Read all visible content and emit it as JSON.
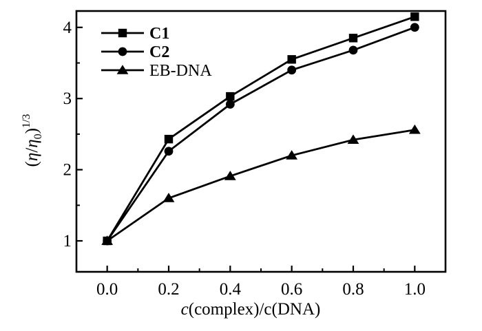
{
  "figure": {
    "background_color": "#ffffff",
    "ink_color": "#000000"
  },
  "chart_data": {
    "type": "line",
    "title": "",
    "x": [
      0.0,
      0.2,
      0.4,
      0.6,
      0.8,
      1.0
    ],
    "series": [
      {
        "name": "C1",
        "marker": "square",
        "label_bold": true,
        "values": [
          1.0,
          2.43,
          3.03,
          3.55,
          3.85,
          4.15
        ]
      },
      {
        "name": "C2",
        "marker": "circle",
        "label_bold": true,
        "values": [
          1.0,
          2.26,
          2.92,
          3.4,
          3.68,
          4.0
        ]
      },
      {
        "name": "EB-DNA",
        "marker": "triangle",
        "label_bold": false,
        "values": [
          1.0,
          1.6,
          1.91,
          2.2,
          2.42,
          2.56
        ]
      }
    ],
    "xlabel": "c(complex)/c(DNA)",
    "xlabel_parts": [
      {
        "text": "c",
        "italic": true
      },
      {
        "text": "(complex)/c(DNA)",
        "italic": false
      }
    ],
    "ylabel": "(η/η₀)^(1/3)",
    "ylabel_parts": [
      {
        "text": "(",
        "italic": false,
        "script": "normal"
      },
      {
        "text": "η",
        "italic": true,
        "script": "normal"
      },
      {
        "text": "/",
        "italic": false,
        "script": "normal"
      },
      {
        "text": "η",
        "italic": true,
        "script": "normal"
      },
      {
        "text": "0",
        "italic": false,
        "script": "sub"
      },
      {
        "text": ")",
        "italic": false,
        "script": "normal"
      },
      {
        "text": "1/3",
        "italic": false,
        "script": "sup"
      }
    ],
    "x_ticks": [
      0.0,
      0.2,
      0.4,
      0.6,
      0.8,
      1.0
    ],
    "x_tick_labels": [
      "0.0",
      "0.2",
      "0.4",
      "0.6",
      "0.8",
      "1.0"
    ],
    "x_minor_ticks": [
      0.1,
      0.3,
      0.5,
      0.7,
      0.9
    ],
    "y_ticks": [
      1,
      2,
      3,
      4
    ],
    "y_tick_labels": [
      "1",
      "2",
      "3",
      "4"
    ],
    "y_minor_ticks": [
      1.5,
      2.5,
      3.5
    ],
    "xlim": [
      -0.1,
      1.1
    ],
    "ylim": [
      0.565,
      4.23
    ],
    "grid": false,
    "legend": {
      "position": "upper-left-inside",
      "entries": [
        "C1",
        "C2",
        "EB-DNA"
      ]
    }
  }
}
